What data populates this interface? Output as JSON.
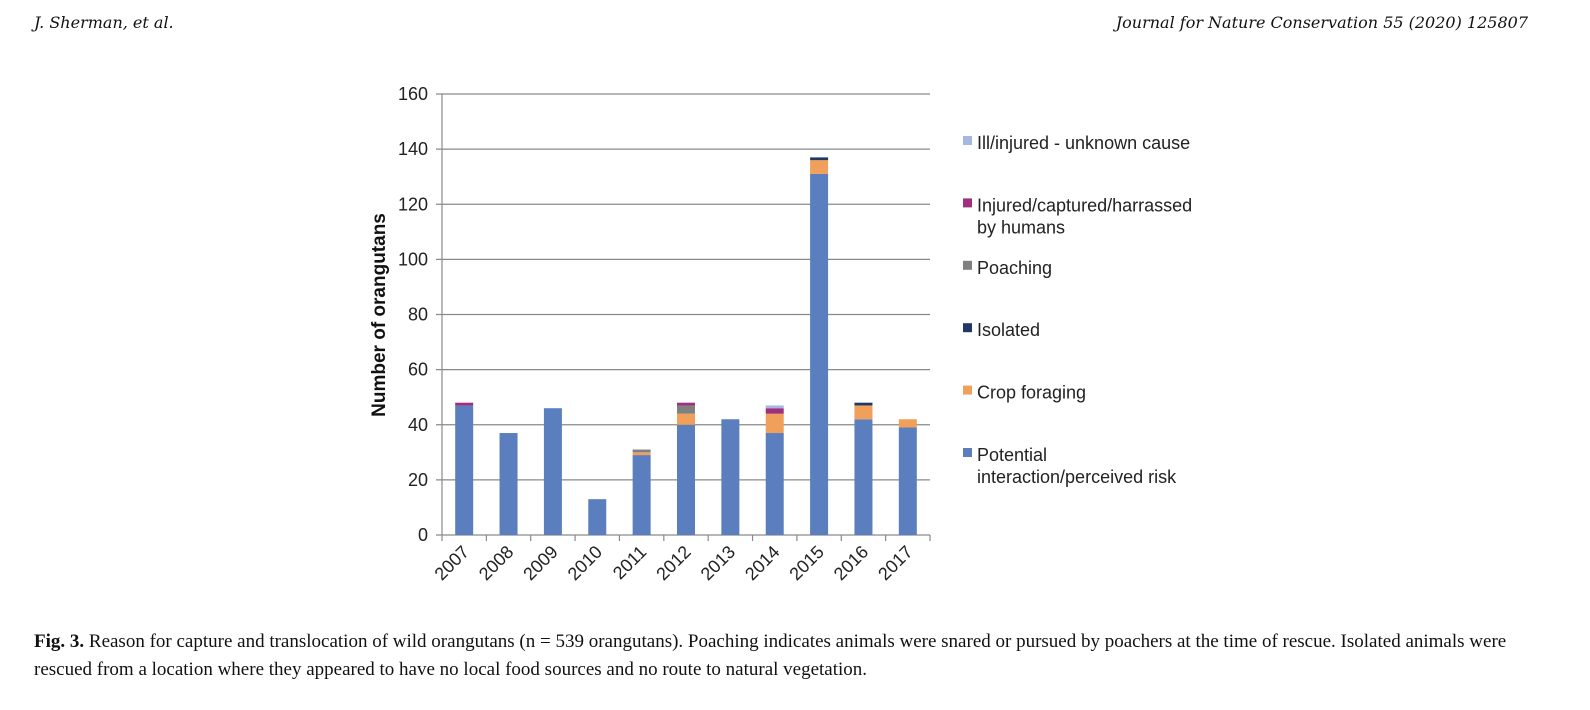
{
  "header": {
    "authors": "J. Sherman, et al.",
    "journal": "Journal for Nature Conservation 55 (2020) 125807"
  },
  "caption": {
    "label": "Fig. 3.",
    "text": " Reason for capture and translocation of wild orangutans (n = 539 orangutans). Poaching indicates animals were snared or pursued by poachers at the time of rescue. Isolated animals were rescued from a location where they appeared to have no local food sources and no route to natural vegetation."
  },
  "chart_data": {
    "type": "bar",
    "stacked": true,
    "ylabel": "Number of orangutans",
    "xlabel": "",
    "ylim": [
      0,
      160
    ],
    "yticks": [
      0,
      20,
      40,
      60,
      80,
      100,
      120,
      140,
      160
    ],
    "grid": true,
    "legend_position": "right",
    "categories": [
      "2007",
      "2008",
      "2009",
      "2010",
      "2011",
      "2012",
      "2013",
      "2014",
      "2015",
      "2016",
      "2017"
    ],
    "series": [
      {
        "name": "Potential interaction/perceived risk",
        "legend_lines": [
          "Potential",
          "interaction/perceived risk"
        ],
        "color": "#5b7fbe",
        "values": [
          47,
          37,
          46,
          13,
          29,
          40,
          42,
          37,
          131,
          42,
          39
        ]
      },
      {
        "name": "Crop foraging",
        "legend_lines": [
          "Crop foraging"
        ],
        "color": "#f0a05a",
        "values": [
          0,
          0,
          0,
          0,
          1,
          4,
          0,
          7,
          5,
          5,
          3
        ]
      },
      {
        "name": "Isolated",
        "legend_lines": [
          "Isolated"
        ],
        "color": "#1f3864",
        "values": [
          0,
          0,
          0,
          0,
          0,
          0,
          0,
          0,
          1,
          1,
          0
        ]
      },
      {
        "name": "Poaching",
        "legend_lines": [
          "Poaching"
        ],
        "color": "#808080",
        "values": [
          0,
          0,
          0,
          0,
          1,
          3,
          0,
          0,
          0,
          0,
          0
        ]
      },
      {
        "name": "Injured/captured/harrassed by humans",
        "legend_lines": [
          "Injured/captured/harrassed",
          "by humans"
        ],
        "color": "#a0307e",
        "values": [
          1,
          0,
          0,
          0,
          0,
          1,
          0,
          2,
          0,
          0,
          0
        ]
      },
      {
        "name": "Ill/injured - unknown cause",
        "legend_lines": [
          "Ill/injured - unknown cause"
        ],
        "color": "#a6b8e0",
        "values": [
          0,
          0,
          0,
          0,
          0,
          0,
          0,
          1,
          0,
          0,
          0
        ]
      }
    ]
  }
}
